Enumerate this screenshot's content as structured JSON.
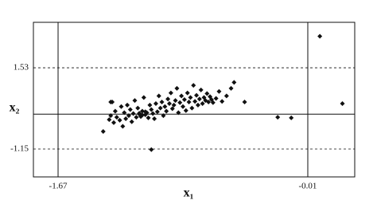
{
  "chart_data": {
    "type": "scatter",
    "xlabel": "x₁",
    "ylabel": "x₂",
    "xlim": [
      -1.834,
      0.302
    ],
    "ylim": [
      -2.07,
      3.03
    ],
    "xticks": [
      -1.67,
      -0.01
    ],
    "yticks": [
      -1.15,
      1.53
    ],
    "xgrid": "solid",
    "ygrid": "dashed",
    "hline": 0,
    "color": "#111111",
    "x": [
      -1.37,
      -1.33,
      -1.32,
      -1.31,
      -1.3,
      -1.29,
      -1.28,
      -1.26,
      -1.25,
      -1.24,
      -1.23,
      -1.22,
      -1.21,
      -1.2,
      -1.19,
      -1.18,
      -1.17,
      -1.16,
      -1.15,
      -1.14,
      -1.13,
      -1.12,
      -1.11,
      -1.1,
      -1.09,
      -1.08,
      -1.07,
      -1.06,
      -1.05,
      -1.04,
      -1.03,
      -1.02,
      -1.01,
      -1.0,
      -0.99,
      -0.98,
      -0.97,
      -0.96,
      -0.95,
      -0.94,
      -0.93,
      -0.92,
      -0.91,
      -0.9,
      -0.89,
      -0.88,
      -0.87,
      -0.86,
      -0.85,
      -0.84,
      -0.83,
      -0.82,
      -0.81,
      -0.8,
      -0.79,
      -0.78,
      -0.77,
      -0.76,
      -0.75,
      -0.74,
      -0.73,
      -0.72,
      -0.71,
      -0.7,
      -0.69,
      -0.68,
      -0.67,
      -0.66,
      -0.65,
      -0.64,
      -0.62,
      -0.6,
      -0.58,
      -0.55,
      -0.52,
      -0.5,
      -1.05,
      -1.32,
      -0.43,
      -0.21,
      -0.12,
      0.07,
      0.22,
      -1.13,
      -1.11,
      -1.09
    ],
    "values": [
      -0.57,
      -0.18,
      -0.05,
      0.4,
      -0.28,
      0.1,
      -0.1,
      -0.2,
      0.25,
      -0.4,
      0.05,
      -0.15,
      0.3,
      -0.05,
      0.15,
      -0.25,
      0.02,
      0.45,
      -0.1,
      0.2,
      0.0,
      -0.08,
      0.1,
      0.55,
      -0.02,
      0.05,
      -0.12,
      0.3,
      0.15,
      0.02,
      -0.15,
      0.35,
      0.08,
      0.6,
      0.2,
      0.4,
      -0.05,
      0.25,
      0.1,
      0.5,
      0.35,
      0.7,
      0.18,
      0.3,
      0.45,
      0.85,
      0.05,
      0.38,
      0.6,
      0.25,
      0.48,
      0.12,
      0.7,
      0.4,
      0.55,
      0.2,
      0.95,
      0.42,
      0.62,
      0.3,
      0.5,
      0.8,
      0.35,
      0.55,
      0.45,
      0.68,
      0.4,
      0.58,
      0.48,
      0.38,
      0.52,
      0.75,
      0.42,
      0.6,
      0.85,
      1.05,
      -1.17,
      0.4,
      0.4,
      -0.1,
      -0.12,
      2.57,
      0.35,
      0.03,
      -0.03,
      0.08
    ]
  }
}
